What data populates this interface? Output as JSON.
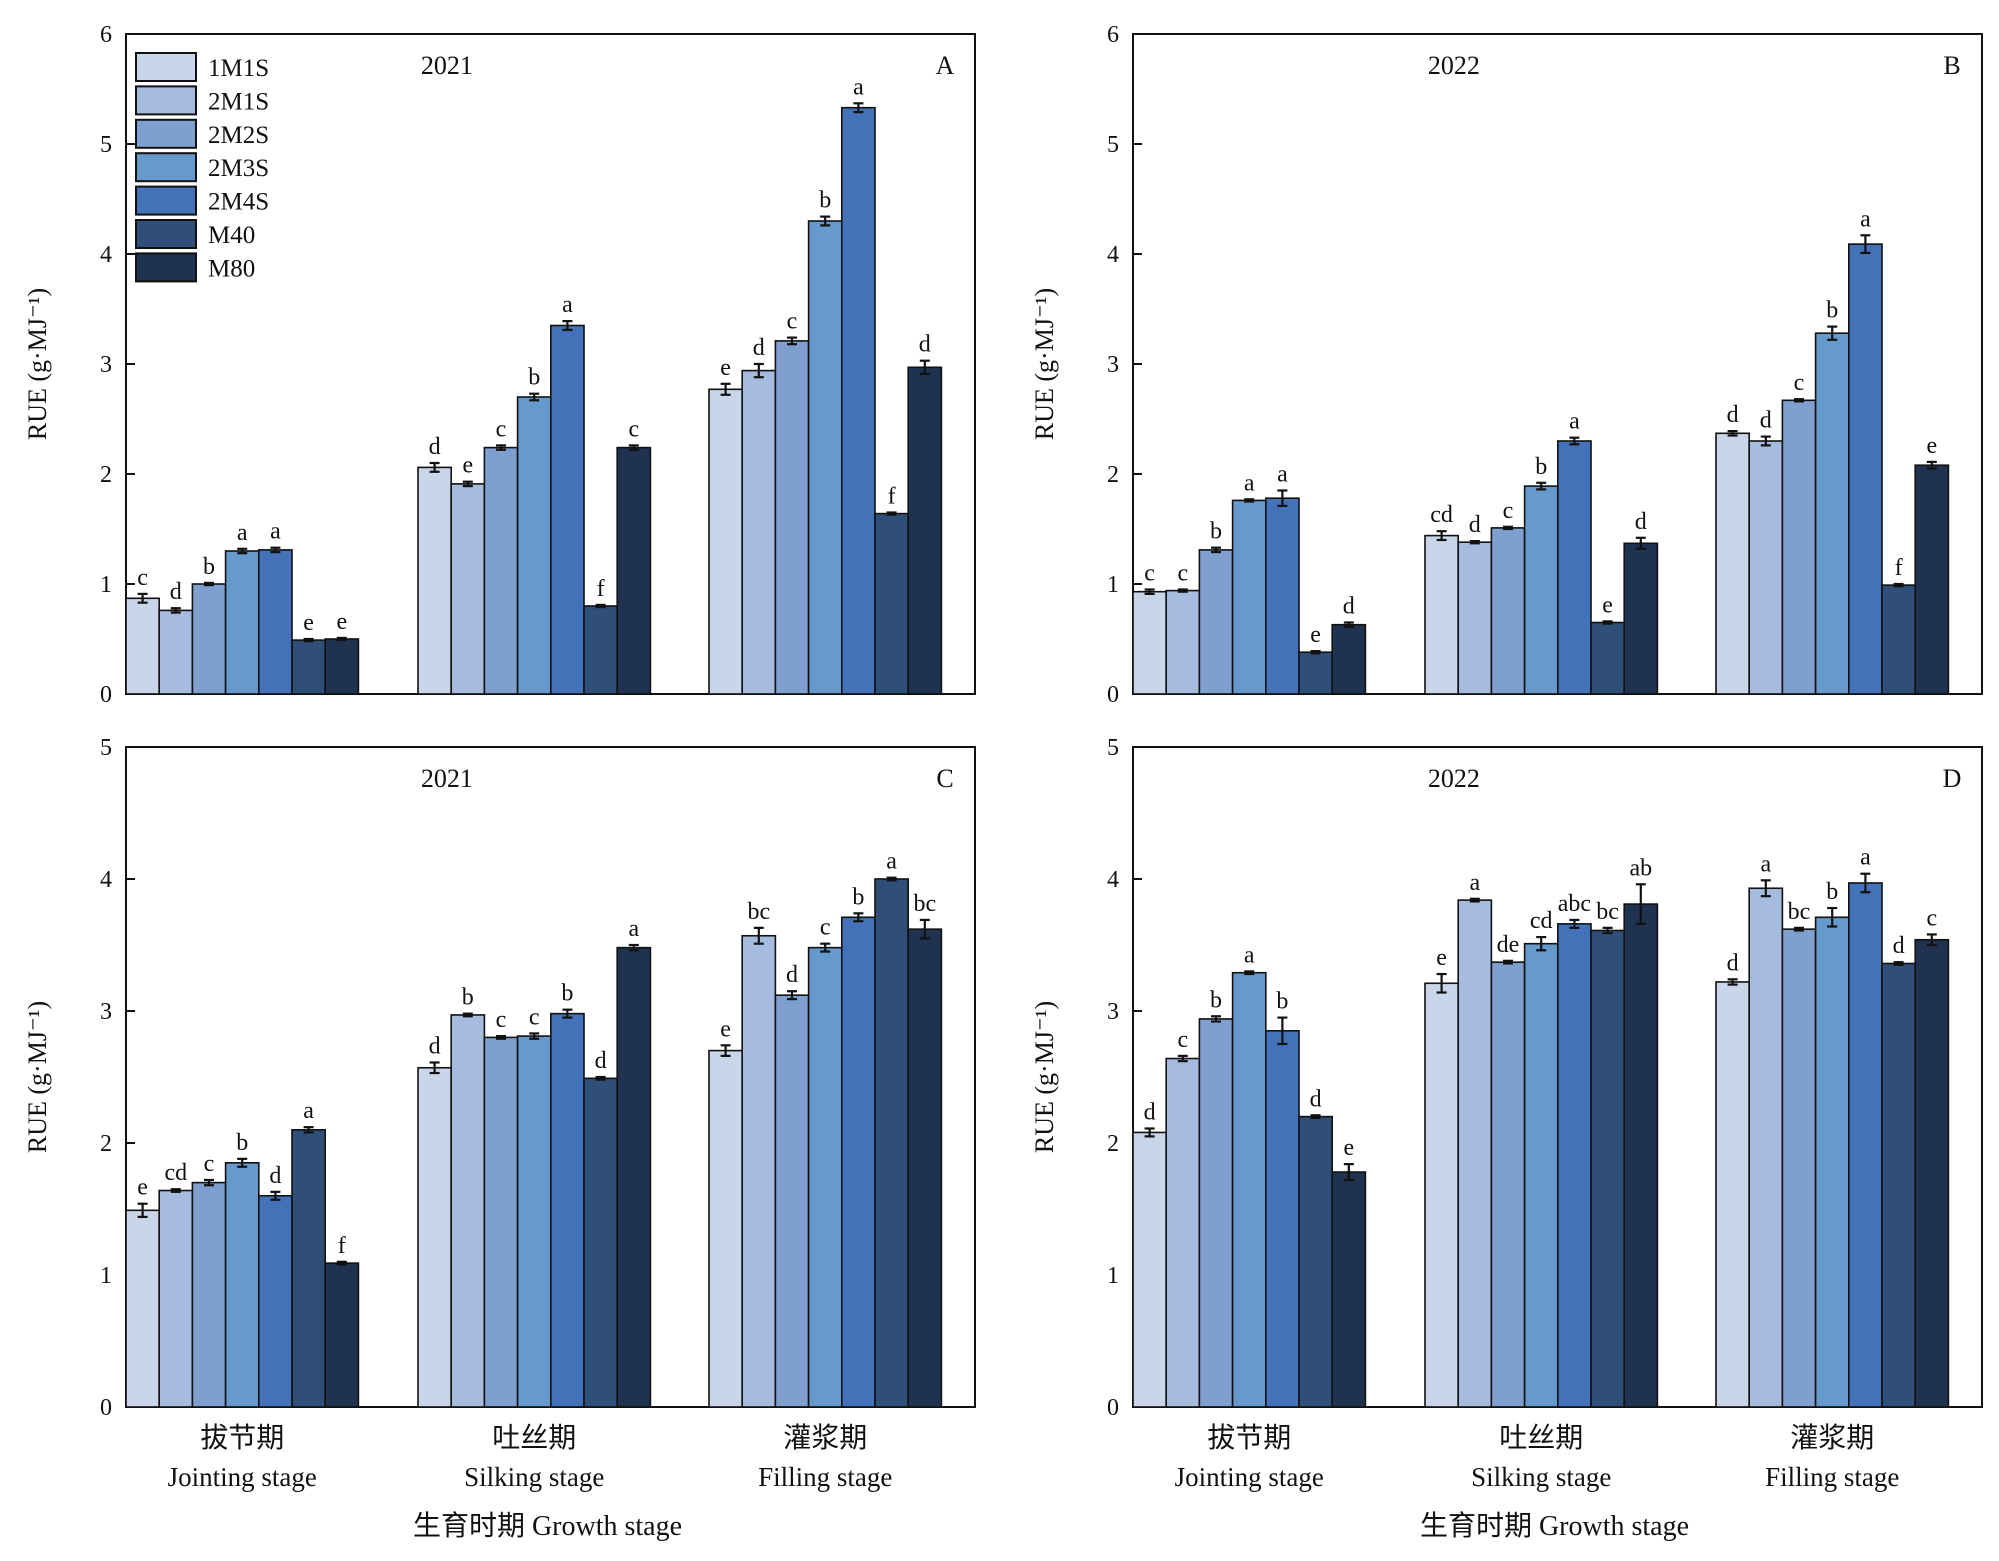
{
  "colors": {
    "1M1S": "#c9d6ea",
    "2M1S": "#a6bcdf",
    "2M2S": "#7f9fcf",
    "2M3S": "#6699cc",
    "2M4S": "#4472b8",
    "M40": "#2f4f78",
    "M80": "#1f3350"
  },
  "legend": [
    "1M1S",
    "2M1S",
    "2M2S",
    "2M3S",
    "2M4S",
    "M40",
    "M80"
  ],
  "x_axis_title": "生育时期 Growth stage",
  "chart_data": [
    {
      "type": "bar",
      "panel": "A",
      "title": "2021",
      "ylabel": "RUE (g·MJ⁻¹)",
      "ylim": [
        0,
        6
      ],
      "yticks": [
        0,
        1,
        2,
        3,
        4,
        5,
        6
      ],
      "categories": [
        {
          "cn": "拔节期",
          "en": "Jointing stage"
        },
        {
          "cn": "吐丝期",
          "en": "Silking stage"
        },
        {
          "cn": "灌浆期",
          "en": "Filling stage"
        }
      ],
      "series": [
        {
          "name": "1M1S",
          "values": [
            0.87,
            2.06,
            2.77
          ],
          "errors": [
            0.04,
            0.04,
            0.05
          ],
          "labels": [
            "c",
            "d",
            "e"
          ]
        },
        {
          "name": "2M1S",
          "values": [
            0.76,
            1.91,
            2.94
          ],
          "errors": [
            0.02,
            0.02,
            0.06
          ],
          "labels": [
            "d",
            "e",
            "d"
          ]
        },
        {
          "name": "2M2S",
          "values": [
            1.0,
            2.24,
            3.21
          ],
          "errors": [
            0.01,
            0.02,
            0.03
          ],
          "labels": [
            "b",
            "c",
            "c"
          ]
        },
        {
          "name": "2M3S",
          "values": [
            1.3,
            2.7,
            4.3
          ],
          "errors": [
            0.02,
            0.03,
            0.04
          ],
          "labels": [
            "a",
            "b",
            "b"
          ]
        },
        {
          "name": "2M4S",
          "values": [
            1.31,
            3.35,
            5.33
          ],
          "errors": [
            0.02,
            0.04,
            0.04
          ],
          "labels": [
            "a",
            "a",
            "a"
          ]
        },
        {
          "name": "M40",
          "values": [
            0.49,
            0.8,
            1.64
          ],
          "errors": [
            0.01,
            0.01,
            0.01
          ],
          "labels": [
            "e",
            "f",
            "f"
          ]
        },
        {
          "name": "M80",
          "values": [
            0.5,
            2.24,
            2.97
          ],
          "errors": [
            0.01,
            0.02,
            0.06
          ],
          "labels": [
            "e",
            "c",
            "d"
          ]
        }
      ]
    },
    {
      "type": "bar",
      "panel": "B",
      "title": "2022",
      "ylabel": "RUE (g·MJ⁻¹)",
      "ylim": [
        0,
        6
      ],
      "yticks": [
        0,
        1,
        2,
        3,
        4,
        5,
        6
      ],
      "categories": [
        {
          "cn": "拔节期",
          "en": "Jointing stage"
        },
        {
          "cn": "吐丝期",
          "en": "Silking stage"
        },
        {
          "cn": "灌浆期",
          "en": "Filling stage"
        }
      ],
      "series": [
        {
          "name": "1M1S",
          "values": [
            0.93,
            1.44,
            2.37
          ],
          "errors": [
            0.02,
            0.04,
            0.02
          ],
          "labels": [
            "c",
            "cd",
            "d"
          ]
        },
        {
          "name": "2M1S",
          "values": [
            0.94,
            1.38,
            2.3
          ],
          "errors": [
            0.01,
            0.01,
            0.04
          ],
          "labels": [
            "c",
            "d",
            "d"
          ]
        },
        {
          "name": "2M2S",
          "values": [
            1.31,
            1.51,
            2.67
          ],
          "errors": [
            0.02,
            0.01,
            0.01
          ],
          "labels": [
            "b",
            "c",
            "c"
          ]
        },
        {
          "name": "2M3S",
          "values": [
            1.76,
            1.89,
            3.28
          ],
          "errors": [
            0.01,
            0.03,
            0.06
          ],
          "labels": [
            "a",
            "b",
            "b"
          ]
        },
        {
          "name": "2M4S",
          "values": [
            1.78,
            2.3,
            4.09
          ],
          "errors": [
            0.07,
            0.03,
            0.08
          ],
          "labels": [
            "a",
            "a",
            "a"
          ]
        },
        {
          "name": "M40",
          "values": [
            0.38,
            0.65,
            0.99
          ],
          "errors": [
            0.01,
            0.01,
            0.01
          ],
          "labels": [
            "e",
            "e",
            "f"
          ]
        },
        {
          "name": "M80",
          "values": [
            0.63,
            1.37,
            2.08
          ],
          "errors": [
            0.02,
            0.05,
            0.03
          ],
          "labels": [
            "d",
            "d",
            "e"
          ]
        }
      ]
    },
    {
      "type": "bar",
      "panel": "C",
      "title": "2021",
      "ylabel": "RUE (g·MJ⁻¹)",
      "ylim": [
        0,
        5
      ],
      "yticks": [
        0,
        1,
        2,
        3,
        4,
        5
      ],
      "categories": [
        {
          "cn": "拔节期",
          "en": "Jointing stage"
        },
        {
          "cn": "吐丝期",
          "en": "Silking stage"
        },
        {
          "cn": "灌浆期",
          "en": "Filling stage"
        }
      ],
      "series": [
        {
          "name": "1M1S",
          "values": [
            1.49,
            2.57,
            2.7
          ],
          "errors": [
            0.05,
            0.04,
            0.04
          ],
          "labels": [
            "e",
            "d",
            "e"
          ]
        },
        {
          "name": "2M1S",
          "values": [
            1.64,
            2.97,
            3.57
          ],
          "errors": [
            0.01,
            0.01,
            0.06
          ],
          "labels": [
            "cd",
            "b",
            "bc"
          ]
        },
        {
          "name": "2M2S",
          "values": [
            1.7,
            2.8,
            3.12
          ],
          "errors": [
            0.02,
            0.01,
            0.03
          ],
          "labels": [
            "c",
            "c",
            "d"
          ]
        },
        {
          "name": "2M3S",
          "values": [
            1.85,
            2.81,
            3.48
          ],
          "errors": [
            0.03,
            0.02,
            0.03
          ],
          "labels": [
            "b",
            "c",
            "c"
          ]
        },
        {
          "name": "2M4S",
          "values": [
            1.6,
            2.98,
            3.71
          ],
          "errors": [
            0.03,
            0.03,
            0.03
          ],
          "labels": [
            "d",
            "b",
            "b"
          ]
        },
        {
          "name": "M40",
          "values": [
            2.1,
            2.49,
            4.0
          ],
          "errors": [
            0.02,
            0.01,
            0.01
          ],
          "labels": [
            "a",
            "d",
            "a"
          ]
        },
        {
          "name": "M80",
          "values": [
            1.09,
            3.48,
            3.62
          ],
          "errors": [
            0.01,
            0.02,
            0.07
          ],
          "labels": [
            "f",
            "a",
            "bc"
          ]
        }
      ]
    },
    {
      "type": "bar",
      "panel": "D",
      "title": "2022",
      "ylabel": "RUE (g·MJ⁻¹)",
      "ylim": [
        0,
        5
      ],
      "yticks": [
        0,
        1,
        2,
        3,
        4,
        5
      ],
      "categories": [
        {
          "cn": "拔节期",
          "en": "Jointing stage"
        },
        {
          "cn": "吐丝期",
          "en": "Silking stage"
        },
        {
          "cn": "灌浆期",
          "en": "Filling stage"
        }
      ],
      "series": [
        {
          "name": "1M1S",
          "values": [
            2.08,
            3.21,
            3.22
          ],
          "errors": [
            0.03,
            0.07,
            0.02
          ],
          "labels": [
            "d",
            "e",
            "d"
          ]
        },
        {
          "name": "2M1S",
          "values": [
            2.64,
            3.84,
            3.93
          ],
          "errors": [
            0.02,
            0.01,
            0.06
          ],
          "labels": [
            "c",
            "a",
            "a"
          ]
        },
        {
          "name": "2M2S",
          "values": [
            2.94,
            3.37,
            3.62
          ],
          "errors": [
            0.02,
            0.01,
            0.01
          ],
          "labels": [
            "b",
            "de",
            "bc"
          ]
        },
        {
          "name": "2M3S",
          "values": [
            3.29,
            3.51,
            3.71
          ],
          "errors": [
            0.01,
            0.05,
            0.07
          ],
          "labels": [
            "a",
            "cd",
            "b"
          ]
        },
        {
          "name": "2M4S",
          "values": [
            2.85,
            3.66,
            3.97
          ],
          "errors": [
            0.1,
            0.03,
            0.07
          ],
          "labels": [
            "b",
            "abc",
            "a"
          ]
        },
        {
          "name": "M40",
          "values": [
            2.2,
            3.61,
            3.36
          ],
          "errors": [
            0.01,
            0.02,
            0.01
          ],
          "labels": [
            "d",
            "bc",
            "d"
          ]
        },
        {
          "name": "M80",
          "values": [
            1.78,
            3.81,
            3.54
          ],
          "errors": [
            0.06,
            0.15,
            0.04
          ],
          "labels": [
            "e",
            "ab",
            "c"
          ]
        }
      ]
    }
  ]
}
